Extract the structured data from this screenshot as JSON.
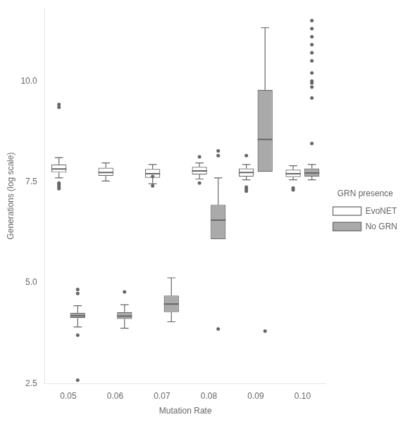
{
  "chart_data": {
    "type": "box",
    "xlabel": "Mutation Rate",
    "ylabel": "Generations (log scale)",
    "categories": [
      "0.05",
      "0.06",
      "0.07",
      "0.08",
      "0.09",
      "0.10"
    ],
    "ylim": [
      2.5,
      11.8
    ],
    "yticks": [
      2.5,
      {
        "value": 5.0,
        "label": "5.0"
      },
      7.5,
      {
        "value": 10.0,
        "label": "10.0"
      }
    ],
    "grid": false,
    "legend": "right",
    "legend_title": "GRN presence",
    "series": [
      {
        "name": "EvoNET",
        "color": "#FFFFFF",
        "values": [
          {
            "med": 7.82,
            "q1": 7.73,
            "q3": 7.93,
            "whislo": 7.6,
            "whishi": 8.1,
            "fliers": [
              9.35,
              9.42,
              7.47,
              7.43,
              7.38,
              7.33
            ]
          },
          {
            "med": 7.73,
            "q1": 7.65,
            "q3": 7.85,
            "whislo": 7.52,
            "whishi": 7.97,
            "fliers": []
          },
          {
            "med": 7.7,
            "q1": 7.6,
            "q3": 7.82,
            "whislo": 7.45,
            "whishi": 7.93,
            "fliers": [
              7.4,
              7.63
            ]
          },
          {
            "med": 7.77,
            "q1": 7.68,
            "q3": 7.87,
            "whislo": 7.57,
            "whishi": 7.97,
            "fliers": [
              8.12,
              7.47
            ]
          },
          {
            "med": 7.73,
            "q1": 7.63,
            "q3": 7.83,
            "whislo": 7.55,
            "whishi": 7.93,
            "fliers": [
              8.15,
              7.37,
              7.32,
              7.27
            ]
          },
          {
            "med": 7.7,
            "q1": 7.62,
            "q3": 7.8,
            "whislo": 7.55,
            "whishi": 7.9,
            "fliers": [
              7.35,
              7.3
            ]
          }
        ]
      },
      {
        "name": "No GRN",
        "color": "#AAAAAA",
        "values": [
          {
            "med": 4.18,
            "q1": 4.12,
            "q3": 4.25,
            "whislo": 3.9,
            "whishi": 4.43,
            "fliers": [
              4.83,
              4.73,
              3.7,
              2.58
            ]
          },
          {
            "med": 4.17,
            "q1": 4.1,
            "q3": 4.27,
            "whislo": 3.87,
            "whishi": 4.45,
            "fliers": [
              4.77
            ]
          },
          {
            "med": 4.47,
            "q1": 4.27,
            "q3": 4.68,
            "whislo": 4.03,
            "whishi": 5.12,
            "fliers": []
          },
          {
            "med": 6.55,
            "q1": 6.08,
            "q3": 6.93,
            "whislo": null,
            "whishi": 7.6,
            "fliers": [
              3.85,
              8.15,
              8.27
            ]
          },
          {
            "med": 8.55,
            "q1": 7.75,
            "q3": 9.78,
            "whislo": null,
            "whishi": 11.32,
            "fliers": [
              3.8
            ]
          },
          {
            "med": 7.72,
            "q1": 7.63,
            "q3": 7.83,
            "whislo": 7.55,
            "whishi": 7.93,
            "fliers": [
              9.58,
              9.85,
              10.0,
              10.2,
              10.5,
              10.7,
              10.9,
              11.1,
              11.3,
              11.5,
              8.45,
              9.95
            ]
          }
        ]
      }
    ]
  }
}
